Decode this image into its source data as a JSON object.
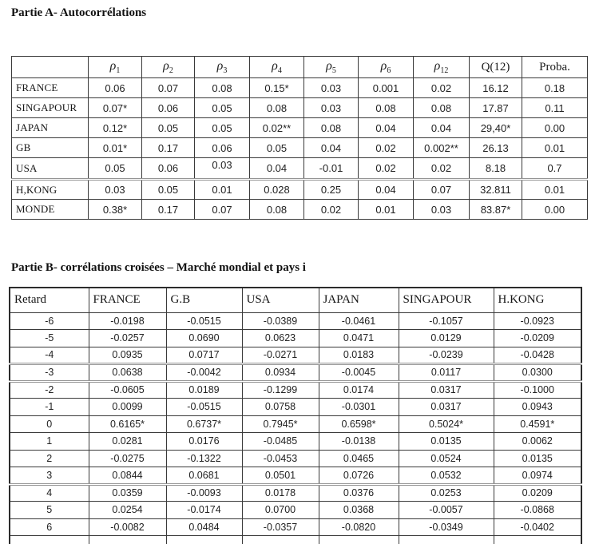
{
  "titles": {
    "part_a": "Partie A- Autocorrélations",
    "part_b": "Partie B- corrélations croisées – Marché mondial et pays i"
  },
  "table_a": {
    "columns": [
      {
        "text": "",
        "sub": ""
      },
      {
        "text": "ρ",
        "sub": "1"
      },
      {
        "text": "ρ",
        "sub": "2"
      },
      {
        "text": "ρ",
        "sub": "3"
      },
      {
        "text": "ρ",
        "sub": "4"
      },
      {
        "text": "ρ",
        "sub": "5"
      },
      {
        "text": "ρ",
        "sub": "6"
      },
      {
        "text": "ρ",
        "sub": "12"
      },
      {
        "text": "Q(12)",
        "sub": ""
      },
      {
        "text": "Proba.",
        "sub": ""
      }
    ],
    "rows": [
      {
        "label": "FRANCE",
        "values": [
          "0.06",
          "0.07",
          "0.08",
          "0.15*",
          "0.03",
          "0.001",
          "0.02",
          "16.12",
          "0.18"
        ]
      },
      {
        "label": "SINGAPOUR",
        "values": [
          "0.07*",
          "0.06",
          "0.05",
          "0.08",
          "0.03",
          "0.08",
          "0.08",
          "17.87",
          "0.11"
        ]
      },
      {
        "label": "JAPAN",
        "values": [
          "0.12*",
          "0.05",
          "0.05",
          "0.02**",
          "0.08",
          "0.04",
          "0.04",
          "29,40*",
          "0.00"
        ]
      },
      {
        "label": "GB",
        "values": [
          "0.01*",
          "0.17",
          "0.06",
          "0.05",
          "0.04",
          "0.02",
          "0.002**",
          "26.13",
          "0.01"
        ]
      },
      {
        "label": "USA",
        "values": [
          "0.05",
          "0.06",
          "0.03",
          "0.04",
          "-0.01",
          "0.02",
          "0.02",
          "8.18",
          "0.7"
        ]
      },
      {
        "label": "H,KONG",
        "values": [
          "0.03",
          "0.05",
          "0.01",
          "0.028",
          "0.25",
          "0.04",
          "0.07",
          "32.811",
          "0.01"
        ]
      },
      {
        "label": "MONDE",
        "values": [
          "0.38*",
          "0.17",
          "0.07",
          "0.08",
          "0.02",
          "0.01",
          "0.03",
          "83.87*",
          "0.00"
        ]
      }
    ]
  },
  "table_b": {
    "columns": [
      "Retard",
      "FRANCE",
      "G.B",
      "USA",
      "JAPAN",
      "SINGAPOUR",
      "H.KONG"
    ],
    "rows": [
      {
        "label": "-6",
        "values": [
          "-0.0198",
          "-0.0515",
          "-0.0389",
          "-0.0461",
          "-0.1057",
          "-0.0923"
        ]
      },
      {
        "label": "-5",
        "values": [
          "-0.0257",
          "0.0690",
          "0.0623",
          "0.0471",
          "0.0129",
          "-0.0209"
        ]
      },
      {
        "label": "-4",
        "values": [
          "0.0935",
          "0.0717",
          "-0.0271",
          "0.0183",
          "-0.0239",
          "-0.0428"
        ]
      },
      {
        "label": "-3",
        "values": [
          "0.0638",
          "-0.0042",
          "0.0934",
          "-0.0045",
          "0.0117",
          "0.0300"
        ]
      },
      {
        "label": "-2",
        "values": [
          "-0.0605",
          "0.0189",
          "-0.1299",
          "0.0174",
          "0.0317",
          "-0.1000"
        ]
      },
      {
        "label": "-1",
        "values": [
          "0.0099",
          "-0.0515",
          "0.0758",
          "-0.0301",
          "0.0317",
          "0.0943"
        ]
      },
      {
        "label": "0",
        "values": [
          "0.6165*",
          "0.6737*",
          "0.7945*",
          "0.6598*",
          "0.5024*",
          "0.4591*"
        ]
      },
      {
        "label": "1",
        "values": [
          "0.0281",
          "0.0176",
          "-0.0485",
          "-0.0138",
          "0.0135",
          "0.0062"
        ]
      },
      {
        "label": "2",
        "values": [
          "-0.0275",
          "-0.1322",
          "-0.0453",
          "0.0465",
          "0.0524",
          "0.0135"
        ]
      },
      {
        "label": "3",
        "values": [
          "0.0844",
          "0.0681",
          "0.0501",
          "0.0726",
          "0.0532",
          "0.0974"
        ]
      },
      {
        "label": "4",
        "values": [
          "0.0359",
          "-0.0093",
          "0.0178",
          "0.0376",
          "0.0253",
          "0.0209"
        ]
      },
      {
        "label": "5",
        "values": [
          "0.0254",
          "-0.0174",
          "0.0700",
          "0.0368",
          "-0.0057",
          "-0.0868"
        ]
      },
      {
        "label": "6",
        "values": [
          "-0.0082",
          "0.0484",
          "-0.0357",
          "-0.0820",
          "-0.0349",
          "-0.0402"
        ]
      }
    ]
  }
}
